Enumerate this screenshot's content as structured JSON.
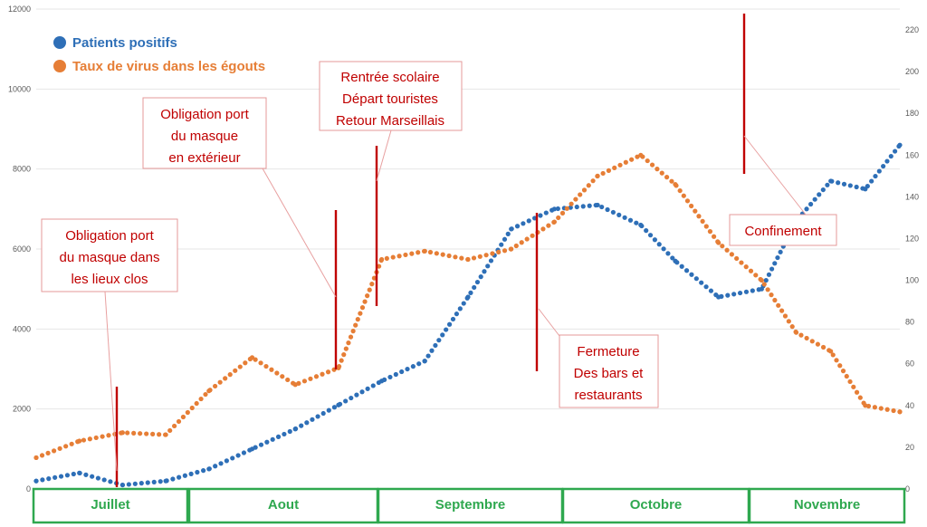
{
  "chart_data": {
    "type": "line",
    "title": "",
    "xlabel": "",
    "ylabel": "",
    "grid": true,
    "legend_position": "top-left",
    "y_left": {
      "range": [
        0,
        12000
      ],
      "ticks": [
        "0",
        "2000",
        "4000",
        "6000",
        "8000",
        "10000",
        "12000"
      ]
    },
    "y_right": {
      "range": [
        0,
        230
      ],
      "ticks": [
        "0",
        "20",
        "40",
        "60",
        "80",
        "100",
        "120",
        "140",
        "160",
        "180",
        "200",
        "220"
      ]
    },
    "x_range": [
      0,
      100
    ],
    "months": [
      "Juillet",
      "Aout",
      "Septembre",
      "Octobre",
      "Novembre"
    ],
    "series": [
      {
        "name": "Patients positifs",
        "axis": "left",
        "color": "#2e6fb7",
        "x": [
          0,
          5,
          10,
          15,
          20,
          25,
          30,
          35,
          40,
          45,
          50,
          55,
          60,
          65,
          70,
          74,
          79,
          84,
          88,
          92,
          96,
          100
        ],
        "y": [
          200,
          400,
          100,
          200,
          500,
          1000,
          1500,
          2100,
          2700,
          3200,
          4800,
          6500,
          7000,
          7100,
          6600,
          5700,
          4800,
          5000,
          6700,
          7700,
          7500,
          8600
        ]
      },
      {
        "name": "Taux de virus dans les égouts",
        "axis": "right",
        "color": "#e67e36",
        "x": [
          0,
          5,
          10,
          15,
          20,
          25,
          30,
          35,
          40,
          45,
          50,
          55,
          60,
          65,
          70,
          74,
          79,
          84,
          88,
          92,
          96,
          100
        ],
        "y": [
          15,
          23,
          27,
          26,
          47,
          63,
          50,
          58,
          110,
          114,
          110,
          115,
          128,
          150,
          160,
          146,
          118,
          100,
          75,
          66,
          40,
          37
        ]
      }
    ]
  },
  "legend": [
    {
      "label": "Patients positifs",
      "color": "#2e6fb7"
    },
    {
      "label": "Taux de virus dans les égouts",
      "color": "#e67e36"
    }
  ],
  "annotations": [
    {
      "lines": [
        "Obligation port",
        "du masque dans",
        "les lieux clos"
      ]
    },
    {
      "lines": [
        "Obligation port",
        "du masque",
        "en extérieur"
      ]
    },
    {
      "lines": [
        "Rentrée scolaire",
        "Départ touristes",
        "Retour Marseillais"
      ]
    },
    {
      "lines": [
        "Fermeture",
        "Des bars et",
        "restaurants"
      ]
    },
    {
      "lines": [
        "Confinement"
      ]
    }
  ],
  "colors": {
    "annotation": "#c00000",
    "month_border": "#2fa84f",
    "grid": "#e6e6e6"
  }
}
